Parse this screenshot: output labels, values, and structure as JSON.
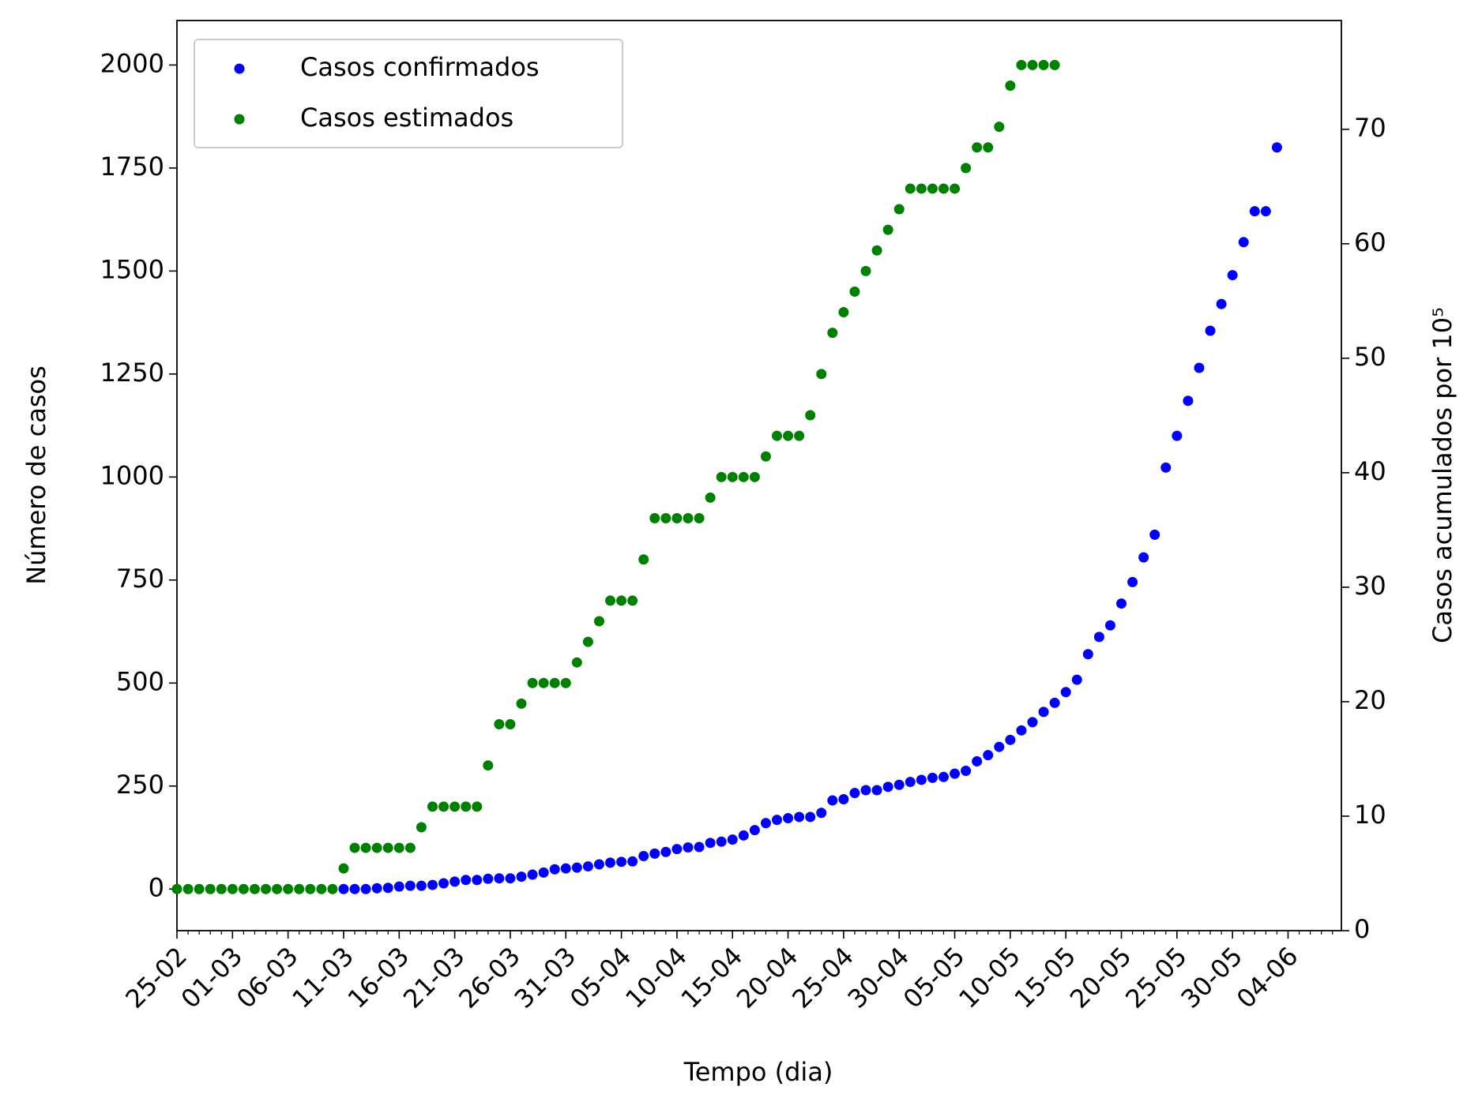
{
  "chart_data": {
    "type": "scatter",
    "x_label": "Tempo (dia)",
    "y_label": "Número de casos",
    "y2_label": "Casos acumulados por 10⁵",
    "categories": [
      "25-02",
      null,
      null,
      null,
      null,
      "01-03",
      null,
      null,
      null,
      null,
      "06-03",
      null,
      null,
      null,
      null,
      "11-03",
      null,
      null,
      null,
      null,
      "16-03",
      null,
      null,
      null,
      null,
      "21-03",
      null,
      null,
      null,
      null,
      "26-03",
      null,
      null,
      null,
      null,
      "31-03",
      null,
      null,
      null,
      null,
      "05-04",
      null,
      null,
      null,
      null,
      "10-04",
      null,
      null,
      null,
      null,
      "15-04",
      null,
      null,
      null,
      null,
      "20-04",
      null,
      null,
      null,
      null,
      "25-04",
      null,
      null,
      null,
      null,
      "30-04",
      null,
      null,
      null,
      null,
      "05-05",
      null,
      null,
      null,
      null,
      "10-05",
      null,
      null,
      null,
      null,
      "15-05",
      null,
      null,
      null,
      null,
      "20-05",
      null,
      null,
      null,
      null,
      "25-05",
      null,
      null,
      null,
      null,
      "30-05",
      null,
      null,
      null,
      null,
      "04-06",
      null,
      null,
      null,
      null
    ],
    "xlim": [
      0,
      104.8
    ],
    "ylim": [
      -101,
      2108
    ],
    "yticks": [
      0,
      250,
      500,
      750,
      1000,
      1250,
      1500,
      1750,
      2000
    ],
    "y2lim": [
      0,
      79.5
    ],
    "y2ticks": [
      0,
      10,
      20,
      30,
      40,
      50,
      60,
      70
    ],
    "legend": "upper left",
    "series": [
      {
        "name": "Casos confirmados",
        "color": "#0000ff",
        "values": [
          null,
          null,
          null,
          null,
          null,
          null,
          null,
          null,
          null,
          null,
          null,
          null,
          null,
          null,
          null,
          0,
          0,
          0,
          2,
          3,
          6,
          8,
          8,
          10,
          14,
          18,
          22,
          22,
          25,
          26,
          26,
          30,
          35,
          40,
          48,
          50,
          52,
          55,
          60,
          64,
          66,
          67,
          80,
          86,
          90,
          97,
          101,
          102,
          112,
          115,
          120,
          130,
          143,
          160,
          168,
          172,
          175,
          175,
          185,
          215,
          218,
          233,
          240,
          240,
          248,
          253,
          260,
          265,
          270,
          272,
          280,
          287,
          310,
          325,
          345,
          362,
          385,
          405,
          430,
          452,
          478,
          508,
          570,
          612,
          640,
          693,
          745,
          805,
          860,
          1023,
          1100,
          1185,
          1265,
          1355,
          1420,
          1490,
          1570,
          1645,
          1645,
          1800,
          null,
          null,
          null,
          null,
          null
        ]
      },
      {
        "name": "Casos estimados",
        "color": "#008000",
        "values": [
          0,
          0,
          0,
          0,
          0,
          0,
          0,
          0,
          0,
          0,
          0,
          0,
          0,
          0,
          0,
          50,
          100,
          100,
          100,
          100,
          100,
          100,
          150,
          200,
          200,
          200,
          200,
          200,
          300,
          400,
          400,
          450,
          500,
          500,
          500,
          500,
          550,
          600,
          650,
          700,
          700,
          700,
          800,
          900,
          900,
          900,
          900,
          900,
          950,
          1000,
          1000,
          1000,
          1000,
          1050,
          1100,
          1100,
          1100,
          1150,
          1250,
          1350,
          1400,
          1450,
          1500,
          1550,
          1600,
          1650,
          1700,
          1700,
          1700,
          1700,
          1700,
          1750,
          1800,
          1800,
          1850,
          1950,
          2000,
          2000,
          2000,
          2000,
          null,
          null,
          null,
          null,
          null,
          null,
          null,
          null,
          null,
          null,
          null,
          null,
          null,
          null,
          null,
          null,
          null,
          null,
          null,
          null,
          null,
          null,
          null,
          null,
          null
        ]
      }
    ]
  }
}
